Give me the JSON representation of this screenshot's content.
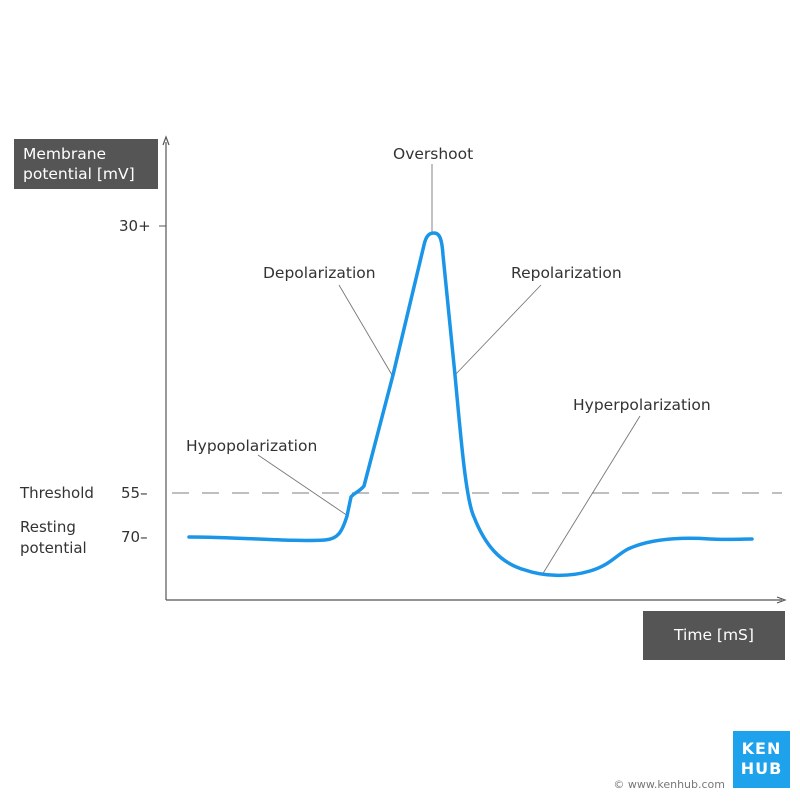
{
  "axes": {
    "y_label_line1": "Membrane",
    "y_label_line2": "potential [mV]",
    "x_label": "Time [mS]"
  },
  "ticks": {
    "top": "30+",
    "threshold": "55–",
    "resting": "70–"
  },
  "side_labels": {
    "threshold": "Threshold",
    "resting_line1": "Resting",
    "resting_line2": "potential"
  },
  "annotations": {
    "overshoot": "Overshoot",
    "depolarization": "Depolarization",
    "repolarization": "Repolarization",
    "hypopolarization": "Hypopolarization",
    "hyperpolarization": "Hyperpolarization"
  },
  "colors": {
    "curve": "#1b95e8",
    "axis": "#555555",
    "label_box": "#555555",
    "brand": "#1fa2ec"
  },
  "logo": {
    "line1": "KEN",
    "line2": "HUB"
  },
  "copyright": "© www.kenhub.com"
}
